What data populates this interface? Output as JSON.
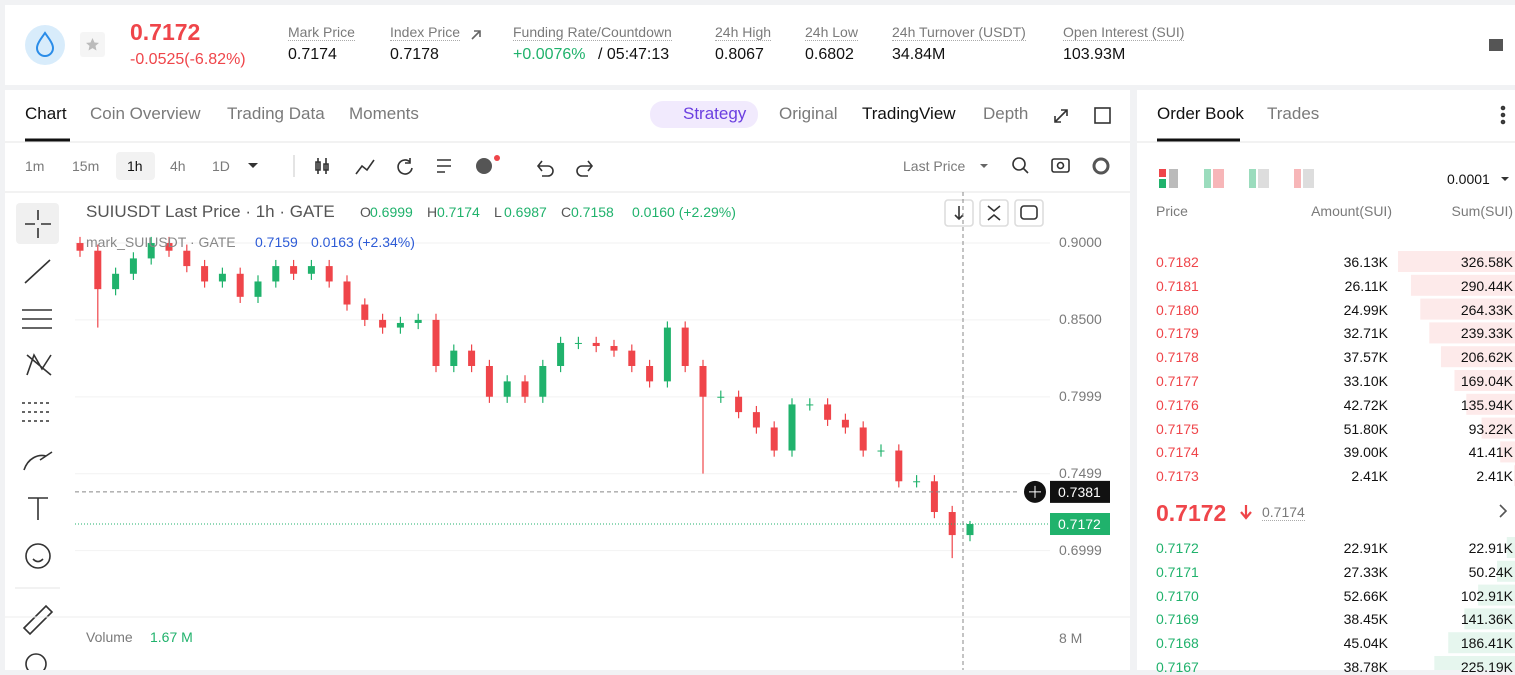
{
  "header": {
    "last_price": "0.7172",
    "change": "-0.0525(-6.82%)",
    "stats": [
      {
        "label": "Mark Price",
        "value": "0.7174"
      },
      {
        "label": "Index Price",
        "value": "0.7178"
      },
      {
        "label": "Funding Rate/Countdown",
        "value": "+0.0076%",
        "value2": "/ 05:47:13"
      },
      {
        "label": "24h High",
        "value": "0.8067"
      },
      {
        "label": "24h Low",
        "value": "0.6802"
      },
      {
        "label": "24h Turnover (USDT)",
        "value": "34.84M"
      },
      {
        "label": "Open Interest (SUI)",
        "value": "103.93M"
      }
    ]
  },
  "chart_tabs": [
    "Chart",
    "Coin Overview",
    "Trading Data",
    "Moments"
  ],
  "view_tabs": [
    "Strategy",
    "Original",
    "TradingView",
    "Depth"
  ],
  "intervals": [
    "1m",
    "15m",
    "1h",
    "4h",
    "1D"
  ],
  "price_source": "Last Price",
  "chart_data": {
    "type": "candlestick",
    "title": "SUIUSDT Last Price · 1h · GATE",
    "ohlc": [
      [
        "O",
        "0.6999"
      ],
      [
        "H",
        "0.7174"
      ],
      [
        "L",
        "0.6987"
      ],
      [
        "C",
        "0.7158"
      ]
    ],
    "change": "0.0160 (+2.29%)",
    "mark_series": {
      "name": "mark_SUIUSDT · GATE",
      "value": "0.7159",
      "change": "0.0163 (+2.34%)"
    },
    "ylim": [
      0.658,
      0.928
    ],
    "yticks": [
      {
        "value": 0.9,
        "label": "0.9000"
      },
      {
        "value": 0.85,
        "label": "0.8500"
      },
      {
        "value": 0.7999,
        "label": "0.7999"
      },
      {
        "value": 0.7499,
        "label": "0.7499"
      },
      {
        "value": 0.6999,
        "label": "0.6999"
      }
    ],
    "grid": true,
    "up_color": "#20b26c",
    "down_color": "#ef454a",
    "crosshair_price": 0.7381,
    "crosshair_label": "0.7381",
    "last_price": 0.7172,
    "last_price_label": "0.7172",
    "volume_label": "Volume",
    "volume_value": "1.67 M",
    "volume_tick": "8 M",
    "open": [
      0.9,
      0.895,
      0.87,
      0.88,
      0.89,
      0.9,
      0.895,
      0.885,
      0.875,
      0.88,
      0.865,
      0.875,
      0.885,
      0.88,
      0.885,
      0.875,
      0.86,
      0.85,
      0.845,
      0.848,
      0.85,
      0.82,
      0.83,
      0.82,
      0.8,
      0.81,
      0.8,
      0.82,
      0.835,
      0.835,
      0.833,
      0.83,
      0.82,
      0.81,
      0.845,
      0.82,
      0.8,
      0.8,
      0.79,
      0.78,
      0.765,
      0.795,
      0.795,
      0.785,
      0.78,
      0.765,
      0.765,
      0.745,
      0.745,
      0.725,
      0.71
    ],
    "high": [
      0.904,
      0.899,
      0.884,
      0.894,
      0.904,
      0.904,
      0.899,
      0.889,
      0.884,
      0.884,
      0.879,
      0.889,
      0.889,
      0.889,
      0.889,
      0.879,
      0.864,
      0.854,
      0.852,
      0.854,
      0.854,
      0.834,
      0.834,
      0.824,
      0.814,
      0.814,
      0.824,
      0.839,
      0.839,
      0.839,
      0.837,
      0.834,
      0.824,
      0.849,
      0.849,
      0.824,
      0.804,
      0.804,
      0.794,
      0.784,
      0.799,
      0.799,
      0.799,
      0.789,
      0.784,
      0.769,
      0.769,
      0.749,
      0.749,
      0.729,
      0.7192
    ],
    "low": [
      0.891,
      0.845,
      0.866,
      0.876,
      0.886,
      0.891,
      0.881,
      0.871,
      0.871,
      0.861,
      0.861,
      0.871,
      0.876,
      0.876,
      0.871,
      0.856,
      0.846,
      0.841,
      0.841,
      0.844,
      0.816,
      0.816,
      0.816,
      0.796,
      0.796,
      0.796,
      0.796,
      0.816,
      0.831,
      0.829,
      0.826,
      0.816,
      0.806,
      0.806,
      0.816,
      0.75,
      0.796,
      0.786,
      0.776,
      0.761,
      0.761,
      0.791,
      0.781,
      0.776,
      0.761,
      0.761,
      0.741,
      0.741,
      0.721,
      0.695,
      0.706
    ],
    "close": [
      0.895,
      0.87,
      0.88,
      0.89,
      0.9,
      0.895,
      0.885,
      0.875,
      0.88,
      0.865,
      0.875,
      0.885,
      0.88,
      0.885,
      0.875,
      0.86,
      0.85,
      0.845,
      0.848,
      0.85,
      0.82,
      0.83,
      0.82,
      0.8,
      0.81,
      0.8,
      0.82,
      0.835,
      0.835,
      0.833,
      0.83,
      0.82,
      0.81,
      0.845,
      0.82,
      0.8,
      0.8,
      0.79,
      0.78,
      0.765,
      0.795,
      0.795,
      0.785,
      0.78,
      0.765,
      0.765,
      0.745,
      0.745,
      0.725,
      0.71,
      0.7172
    ]
  },
  "order_book": {
    "tabs": [
      "Order Book",
      "Trades"
    ],
    "precision": "0.0001",
    "columns": [
      "Price",
      "Amount(SUI)",
      "Sum(SUI)"
    ],
    "asks": [
      {
        "price": "0.7182",
        "amount": "36.13K",
        "sum": "326.58K"
      },
      {
        "price": "0.7181",
        "amount": "26.11K",
        "sum": "290.44K"
      },
      {
        "price": "0.7180",
        "amount": "24.99K",
        "sum": "264.33K"
      },
      {
        "price": "0.7179",
        "amount": "32.71K",
        "sum": "239.33K"
      },
      {
        "price": "0.7178",
        "amount": "37.57K",
        "sum": "206.62K"
      },
      {
        "price": "0.7177",
        "amount": "33.10K",
        "sum": "169.04K"
      },
      {
        "price": "0.7176",
        "amount": "42.72K",
        "sum": "135.94K"
      },
      {
        "price": "0.7175",
        "amount": "51.80K",
        "sum": "93.22K"
      },
      {
        "price": "0.7174",
        "amount": "39.00K",
        "sum": "41.41K"
      },
      {
        "price": "0.7173",
        "amount": "2.41K",
        "sum": "2.41K"
      }
    ],
    "mid_price": "0.7172",
    "mark_price": "0.7174",
    "bids": [
      {
        "price": "0.7172",
        "amount": "22.91K",
        "sum": "22.91K"
      },
      {
        "price": "0.7171",
        "amount": "27.33K",
        "sum": "50.24K"
      },
      {
        "price": "0.7170",
        "amount": "52.66K",
        "sum": "102.91K"
      },
      {
        "price": "0.7169",
        "amount": "38.45K",
        "sum": "141.36K"
      },
      {
        "price": "0.7168",
        "amount": "45.04K",
        "sum": "186.41K"
      },
      {
        "price": "0.7167",
        "amount": "38.78K",
        "sum": "225.19K"
      }
    ]
  }
}
